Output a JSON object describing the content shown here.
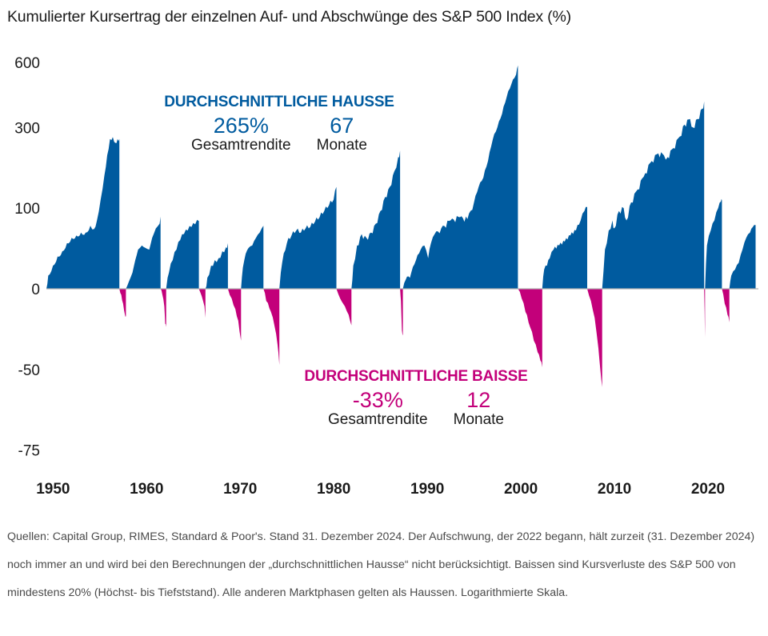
{
  "title": "Kumulierter Kursertrag der einzelnen Auf- und Abschwünge des S&P 500 Index (%)",
  "colors": {
    "hausse": "#005b9f",
    "baisse": "#c3007a",
    "axis": "#b0b0b0"
  },
  "annotations": {
    "hausse": {
      "heading": "DURCHSCHNITTLICHE HAUSSE",
      "return_value": "265%",
      "return_label": "Gesamtrendite",
      "months_value": "67",
      "months_label": "Monate"
    },
    "baisse": {
      "heading": "DURCHSCHNITTLICHE BAISSE",
      "return_value": "-33%",
      "return_label": "Gesamtrendite",
      "months_value": "12",
      "months_label": "Monate"
    }
  },
  "footnote": "Quellen: Capital Group, RIMES, Standard & Poor's. Stand 31. Dezember 2024. Der Aufschwung, der 2022 begann, hält zurzeit (31. Dezember 2024) noch immer an und wird bei den Berechnungen der „durchschnittlichen Hausse“ nicht berücksichtigt. Baissen sind Kursverluste des S&P 500 von mindestens 20% (Höchst- bis Tiefststand). Alle anderen Marktphasen gelten als Haussen. Logarithmierte Skala.",
  "chart_data": {
    "type": "area",
    "title": "Kumulierter Kursertrag der einzelnen Auf- und Abschwünge des S&P 500 Index (%)",
    "xlabel": "",
    "ylabel": "",
    "yscale": "log(1 + value/100)",
    "ylim": [
      -75,
      600
    ],
    "xlim": [
      1949.8,
      2025.9
    ],
    "y_ticks": [
      600,
      300,
      100,
      0,
      -50,
      -75
    ],
    "x_ticks": [
      1950,
      1960,
      1970,
      1980,
      1990,
      2000,
      2010,
      2020
    ],
    "grid": false,
    "legend": "none",
    "series": [
      {
        "name": "Hausse",
        "kind": "hausse",
        "points": [
          [
            1949.8,
            0
          ],
          [
            1950.0,
            12
          ],
          [
            1950.5,
            22
          ],
          [
            1951.0,
            32
          ],
          [
            1951.5,
            38
          ],
          [
            1952.0,
            48
          ],
          [
            1952.5,
            55
          ],
          [
            1953.0,
            58
          ],
          [
            1953.5,
            62
          ],
          [
            1954.0,
            62
          ],
          [
            1954.5,
            72
          ],
          [
            1954.9,
            67
          ],
          [
            1955.2,
            80
          ],
          [
            1955.6,
            115
          ],
          [
            1956.0,
            165
          ],
          [
            1956.3,
            215
          ],
          [
            1956.6,
            262
          ],
          [
            1956.9,
            268
          ],
          [
            1957.2,
            250
          ],
          [
            1957.4,
            262
          ],
          [
            1957.6,
            262
          ]
        ]
      },
      {
        "name": "Baisse",
        "kind": "baisse",
        "points": [
          [
            1957.6,
            0
          ],
          [
            1957.8,
            -5
          ],
          [
            1958.0,
            -12
          ],
          [
            1958.2,
            -20
          ],
          [
            1958.3,
            -21
          ]
        ]
      },
      {
        "name": "Hausse",
        "kind": "hausse",
        "points": [
          [
            1958.3,
            0
          ],
          [
            1958.6,
            6
          ],
          [
            1959.0,
            15
          ],
          [
            1959.3,
            28
          ],
          [
            1959.6,
            40
          ],
          [
            1960.0,
            45
          ],
          [
            1960.4,
            42
          ],
          [
            1960.8,
            40
          ],
          [
            1961.1,
            55
          ],
          [
            1961.5,
            68
          ],
          [
            1961.9,
            75
          ],
          [
            1962.0,
            86
          ]
        ]
      },
      {
        "name": "Baisse",
        "kind": "baisse",
        "points": [
          [
            1962.0,
            0
          ],
          [
            1962.2,
            -5
          ],
          [
            1962.4,
            -14
          ],
          [
            1962.5,
            -26
          ],
          [
            1962.6,
            -28
          ]
        ]
      },
      {
        "name": "Hausse",
        "kind": "hausse",
        "points": [
          [
            1962.6,
            0
          ],
          [
            1962.9,
            15
          ],
          [
            1963.3,
            28
          ],
          [
            1963.7,
            40
          ],
          [
            1964.1,
            52
          ],
          [
            1964.5,
            60
          ],
          [
            1964.9,
            65
          ],
          [
            1965.3,
            70
          ],
          [
            1965.7,
            74
          ],
          [
            1966.1,
            79
          ]
        ]
      },
      {
        "name": "Baisse",
        "kind": "baisse",
        "points": [
          [
            1966.1,
            0
          ],
          [
            1966.4,
            -6
          ],
          [
            1966.7,
            -14
          ],
          [
            1966.8,
            -22
          ]
        ]
      },
      {
        "name": "Hausse",
        "kind": "hausse",
        "points": [
          [
            1966.8,
            0
          ],
          [
            1967.0,
            10
          ],
          [
            1967.4,
            22
          ],
          [
            1967.8,
            28
          ],
          [
            1968.2,
            30
          ],
          [
            1968.6,
            38
          ],
          [
            1969.0,
            43
          ],
          [
            1969.2,
            48
          ]
        ]
      },
      {
        "name": "Baisse",
        "kind": "baisse",
        "points": [
          [
            1969.2,
            0
          ],
          [
            1969.6,
            -8
          ],
          [
            1970.0,
            -16
          ],
          [
            1970.3,
            -24
          ],
          [
            1970.6,
            -36
          ]
        ]
      },
      {
        "name": "Hausse",
        "kind": "hausse",
        "points": [
          [
            1970.6,
            0
          ],
          [
            1970.8,
            20
          ],
          [
            1971.1,
            35
          ],
          [
            1971.4,
            42
          ],
          [
            1971.8,
            45
          ],
          [
            1972.2,
            55
          ],
          [
            1972.6,
            62
          ],
          [
            1973.0,
            72
          ]
        ]
      },
      {
        "name": "Baisse",
        "kind": "baisse",
        "points": [
          [
            1973.0,
            0
          ],
          [
            1973.3,
            -10
          ],
          [
            1973.8,
            -18
          ],
          [
            1974.2,
            -28
          ],
          [
            1974.5,
            -38
          ],
          [
            1974.7,
            -48
          ]
        ]
      },
      {
        "name": "Hausse",
        "kind": "hausse",
        "points": [
          [
            1974.7,
            0
          ],
          [
            1975.0,
            25
          ],
          [
            1975.5,
            48
          ],
          [
            1976.0,
            58
          ],
          [
            1976.5,
            65
          ],
          [
            1977.0,
            62
          ],
          [
            1977.5,
            68
          ],
          [
            1978.0,
            70
          ],
          [
            1978.5,
            78
          ],
          [
            1979.0,
            85
          ],
          [
            1979.5,
            95
          ],
          [
            1980.0,
            105
          ],
          [
            1980.5,
            115
          ],
          [
            1980.8,
            140
          ]
        ]
      },
      {
        "name": "Baisse",
        "kind": "baisse",
        "points": [
          [
            1980.8,
            0
          ],
          [
            1981.2,
            -8
          ],
          [
            1981.7,
            -14
          ],
          [
            1982.1,
            -20
          ],
          [
            1982.4,
            -27
          ]
        ]
      },
      {
        "name": "Hausse",
        "kind": "hausse",
        "points": [
          [
            1982.4,
            0
          ],
          [
            1982.6,
            22
          ],
          [
            1983.0,
            45
          ],
          [
            1983.5,
            60
          ],
          [
            1984.0,
            55
          ],
          [
            1984.5,
            62
          ],
          [
            1985.0,
            75
          ],
          [
            1985.5,
            95
          ],
          [
            1986.0,
            120
          ],
          [
            1986.5,
            140
          ],
          [
            1987.0,
            175
          ],
          [
            1987.4,
            210
          ],
          [
            1987.6,
            228
          ]
        ]
      },
      {
        "name": "Baisse",
        "kind": "baisse",
        "points": [
          [
            1987.6,
            0
          ],
          [
            1987.7,
            -10
          ],
          [
            1987.8,
            -30
          ],
          [
            1987.9,
            -33
          ]
        ]
      },
      {
        "name": "Hausse",
        "kind": "hausse",
        "points": [
          [
            1987.9,
            0
          ],
          [
            1988.2,
            8
          ],
          [
            1988.8,
            15
          ],
          [
            1989.3,
            28
          ],
          [
            1989.8,
            40
          ],
          [
            1990.2,
            45
          ],
          [
            1990.6,
            30
          ],
          [
            1990.9,
            48
          ],
          [
            1991.3,
            60
          ],
          [
            1992.0,
            68
          ],
          [
            1993.0,
            80
          ],
          [
            1994.0,
            85
          ],
          [
            1994.8,
            82
          ],
          [
            1995.5,
            110
          ],
          [
            1996.0,
            140
          ],
          [
            1996.5,
            160
          ],
          [
            1997.0,
            200
          ],
          [
            1997.5,
            260
          ],
          [
            1998.0,
            300
          ],
          [
            1998.5,
            350
          ],
          [
            1999.0,
            420
          ],
          [
            1999.5,
            480
          ],
          [
            2000.0,
            530
          ],
          [
            2000.2,
            582
          ]
        ]
      },
      {
        "name": "Baisse",
        "kind": "baisse",
        "points": [
          [
            2000.2,
            0
          ],
          [
            2000.6,
            -8
          ],
          [
            2001.0,
            -18
          ],
          [
            2001.5,
            -28
          ],
          [
            2001.9,
            -36
          ],
          [
            2002.3,
            -42
          ],
          [
            2002.6,
            -46
          ],
          [
            2002.8,
            -49
          ]
        ]
      },
      {
        "name": "Hausse",
        "kind": "hausse",
        "points": [
          [
            2002.8,
            0
          ],
          [
            2003.0,
            18
          ],
          [
            2003.3,
            22
          ],
          [
            2003.6,
            30
          ],
          [
            2004.0,
            40
          ],
          [
            2004.6,
            45
          ],
          [
            2005.2,
            50
          ],
          [
            2005.8,
            58
          ],
          [
            2006.4,
            65
          ],
          [
            2006.9,
            80
          ],
          [
            2007.3,
            95
          ],
          [
            2007.6,
            102
          ]
        ]
      },
      {
        "name": "Baisse",
        "kind": "baisse",
        "points": [
          [
            2007.6,
            0
          ],
          [
            2008.0,
            -10
          ],
          [
            2008.4,
            -22
          ],
          [
            2008.8,
            -40
          ],
          [
            2009.0,
            -50
          ],
          [
            2009.2,
            -57
          ]
        ]
      },
      {
        "name": "Hausse",
        "kind": "hausse",
        "points": [
          [
            2009.2,
            0
          ],
          [
            2009.5,
            40
          ],
          [
            2009.9,
            65
          ],
          [
            2010.3,
            80
          ],
          [
            2010.5,
            68
          ],
          [
            2011.0,
            95
          ],
          [
            2011.5,
            100
          ],
          [
            2011.8,
            80
          ],
          [
            2012.3,
            110
          ],
          [
            2013.0,
            135
          ],
          [
            2013.8,
            170
          ],
          [
            2014.5,
            200
          ],
          [
            2015.2,
            220
          ],
          [
            2015.8,
            215
          ],
          [
            2016.2,
            210
          ],
          [
            2016.8,
            235
          ],
          [
            2017.5,
            270
          ],
          [
            2018.0,
            310
          ],
          [
            2018.6,
            330
          ],
          [
            2018.9,
            300
          ],
          [
            2019.4,
            330
          ],
          [
            2019.9,
            370
          ],
          [
            2020.1,
            400
          ]
        ]
      },
      {
        "name": "Baisse",
        "kind": "baisse",
        "points": [
          [
            2020.1,
            0
          ],
          [
            2020.15,
            -18
          ],
          [
            2020.2,
            -34
          ]
        ]
      },
      {
        "name": "Hausse",
        "kind": "hausse",
        "points": [
          [
            2020.2,
            0
          ],
          [
            2020.4,
            45
          ],
          [
            2020.8,
            65
          ],
          [
            2021.2,
            80
          ],
          [
            2021.6,
            100
          ],
          [
            2021.9,
            112
          ],
          [
            2022.0,
            114
          ]
        ]
      },
      {
        "name": "Baisse",
        "kind": "baisse",
        "points": [
          [
            2022.0,
            0
          ],
          [
            2022.3,
            -12
          ],
          [
            2022.6,
            -20
          ],
          [
            2022.8,
            -25
          ]
        ]
      },
      {
        "name": "Hausse",
        "kind": "hausse",
        "points": [
          [
            2022.8,
            0
          ],
          [
            2023.0,
            12
          ],
          [
            2023.4,
            18
          ],
          [
            2023.8,
            25
          ],
          [
            2024.2,
            40
          ],
          [
            2024.6,
            55
          ],
          [
            2025.0,
            62
          ],
          [
            2025.3,
            70
          ],
          [
            2025.6,
            73
          ]
        ]
      }
    ]
  }
}
